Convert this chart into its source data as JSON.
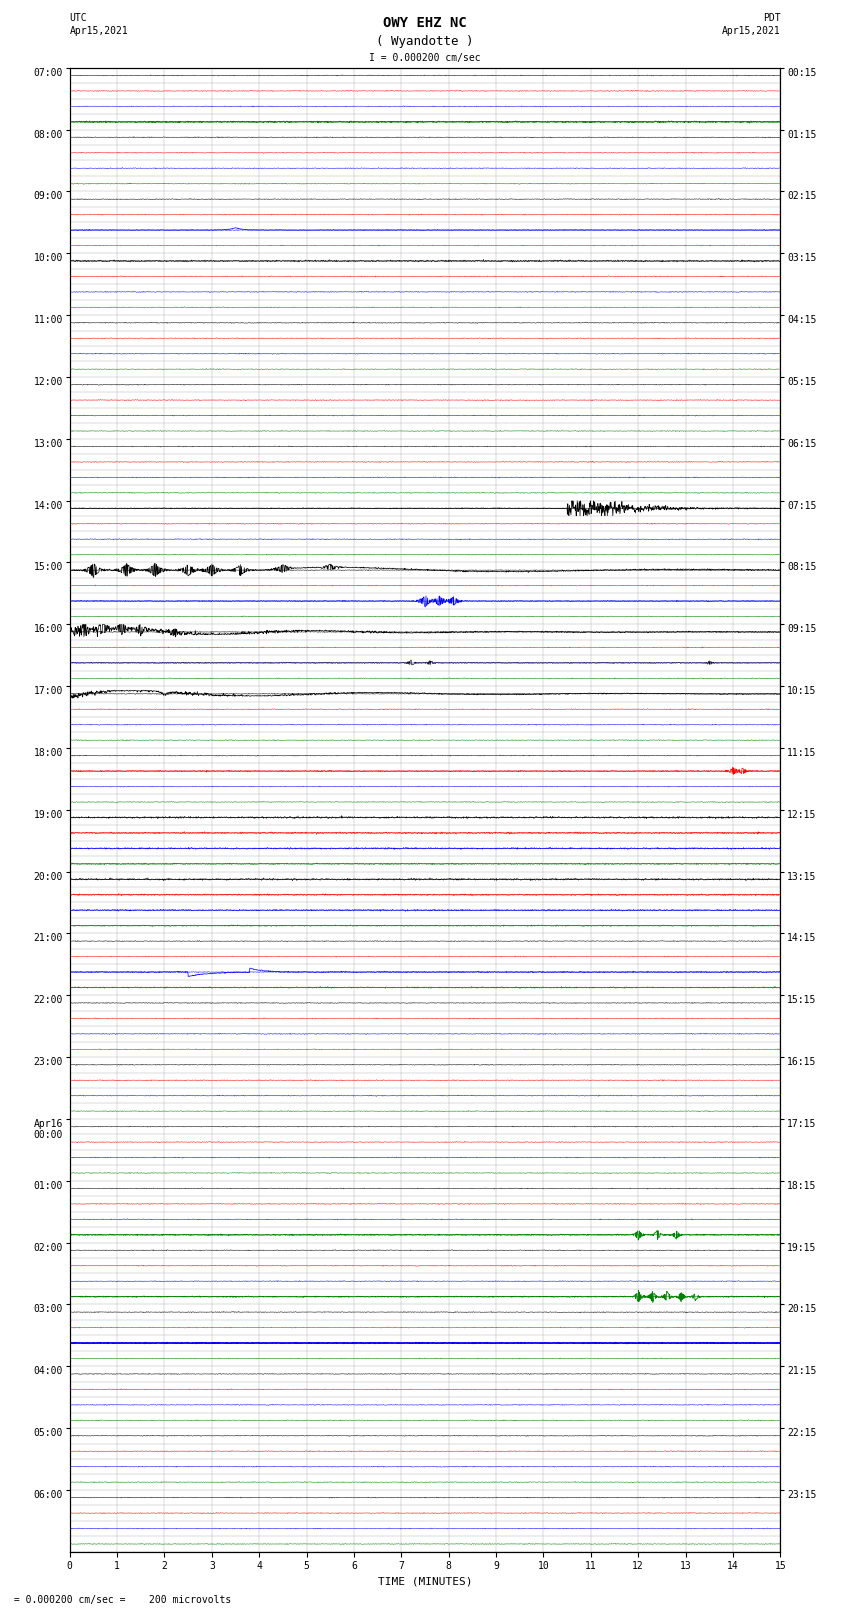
{
  "title_line1": "OWY EHZ NC",
  "title_line2": "( Wyandotte )",
  "scale_label": "I = 0.000200 cm/sec",
  "left_date_line1": "UTC",
  "left_date_line2": "Apr15,2021",
  "right_date_line1": "PDT",
  "right_date_line2": "Apr15,2021",
  "bottom_note": " = 0.000200 cm/sec =    200 microvolts",
  "xlabel": "TIME (MINUTES)",
  "bg_color": "#ffffff",
  "grid_color": "#aaaaaa",
  "n_hours": 24,
  "subrows_per_hour": 4,
  "minutes_per_row": 15,
  "trace_colors_cycle": [
    "black",
    "red",
    "blue",
    "green"
  ],
  "left_hour_labels": [
    "07:00",
    "08:00",
    "09:00",
    "10:00",
    "11:00",
    "12:00",
    "13:00",
    "14:00",
    "15:00",
    "16:00",
    "17:00",
    "18:00",
    "19:00",
    "20:00",
    "21:00",
    "22:00",
    "23:00",
    "Apr16\n00:00",
    "01:00",
    "02:00",
    "03:00",
    "04:00",
    "05:00",
    "06:00"
  ],
  "right_hour_labels": [
    "00:15",
    "01:15",
    "02:15",
    "03:15",
    "04:15",
    "05:15",
    "06:15",
    "07:15",
    "08:15",
    "09:15",
    "10:15",
    "11:15",
    "12:15",
    "13:15",
    "14:15",
    "15:15",
    "16:15",
    "17:15",
    "18:15",
    "19:15",
    "20:15",
    "21:15",
    "22:15",
    "23:15"
  ],
  "title_fontsize": 10,
  "label_fontsize": 8,
  "tick_fontsize": 7
}
